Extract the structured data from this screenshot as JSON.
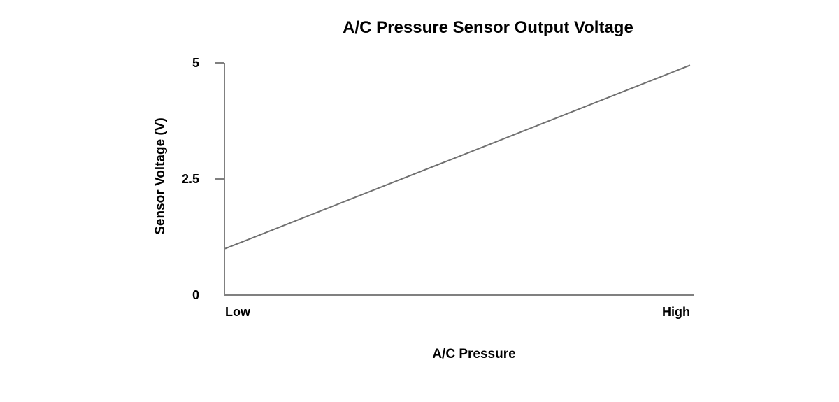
{
  "chart_data": {
    "type": "line",
    "title": "A/C Pressure Sensor Output Voltage",
    "xlabel": "A/C Pressure",
    "ylabel": "Sensor Voltage (V)",
    "x_categories": [
      "Low",
      "High"
    ],
    "ylim": [
      0,
      5
    ],
    "y_ticks": [
      {
        "value": 0,
        "label": "0"
      },
      {
        "value": 2.5,
        "label": "2.5"
      },
      {
        "value": 5,
        "label": "5"
      }
    ],
    "grid": false,
    "series": [
      {
        "name": "Sensor Voltage",
        "x": [
          0,
          1
        ],
        "values": [
          1.0,
          4.95
        ]
      }
    ],
    "colors": {
      "axis": "#808080",
      "line": "#707070",
      "text": "#000000"
    }
  }
}
